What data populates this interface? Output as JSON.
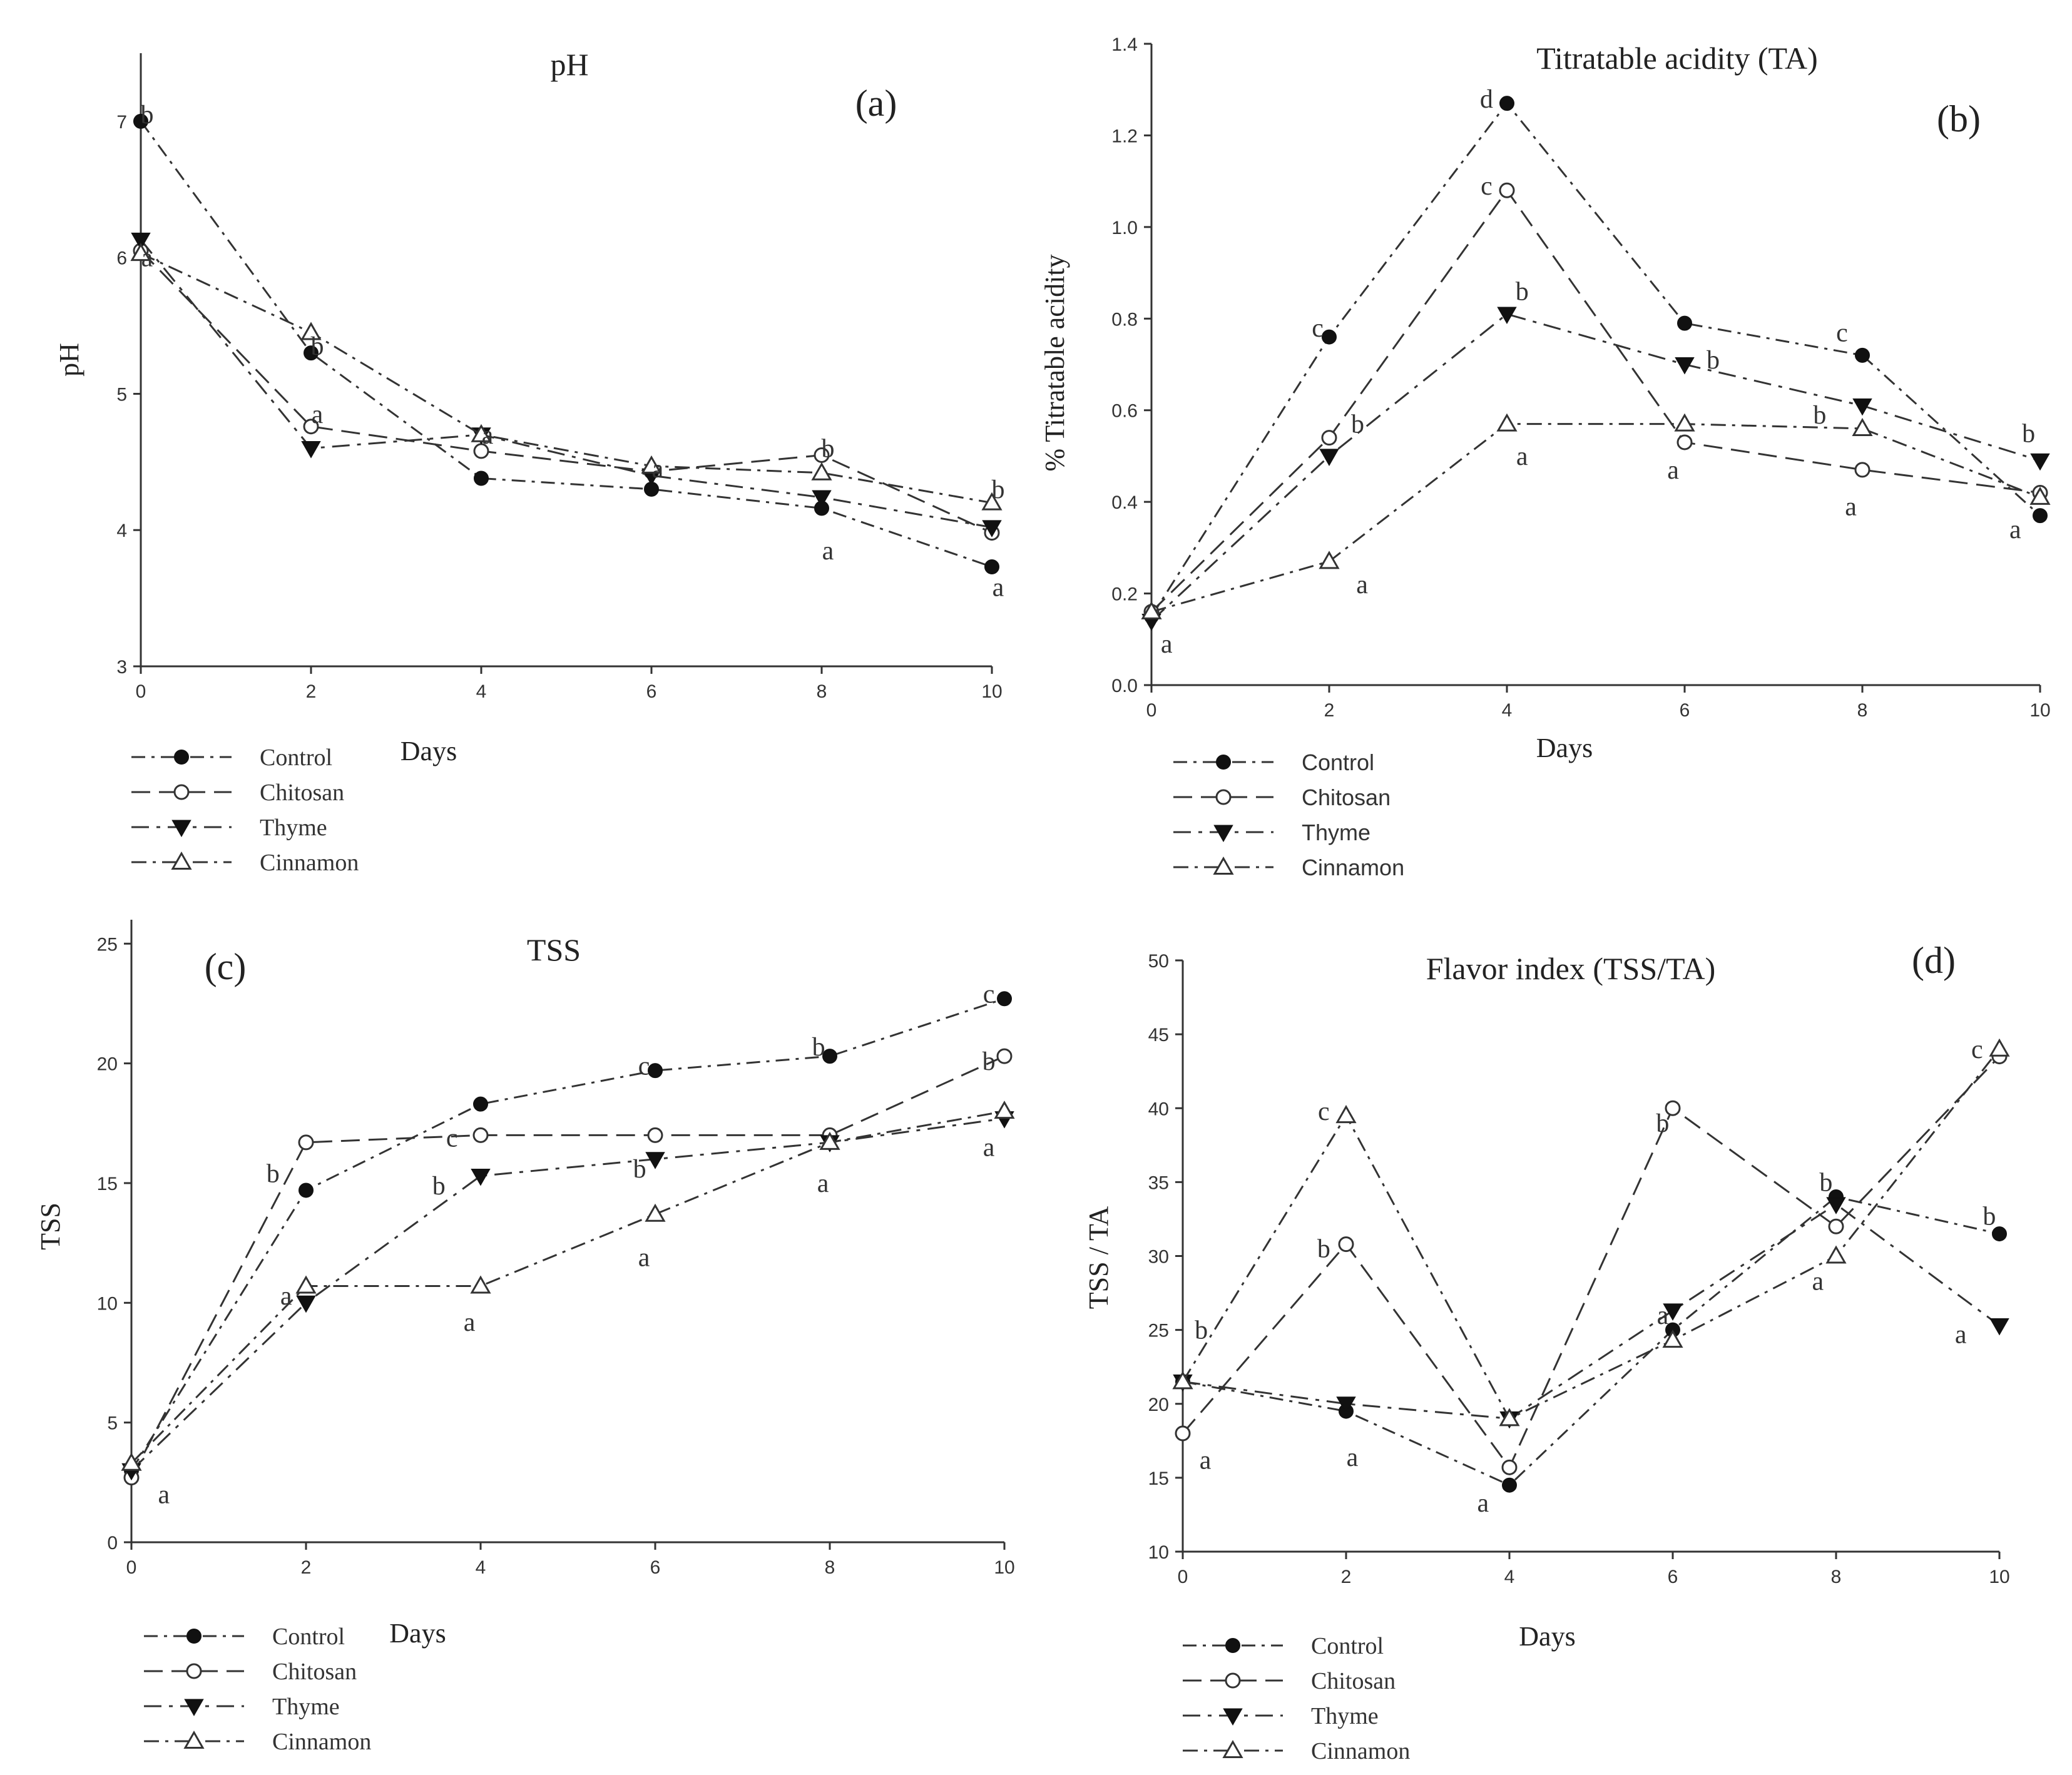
{
  "chart_data": [
    {
      "type": "line",
      "panel_label": "(a)",
      "title": "pH",
      "xlabel": "Days",
      "ylabel": "pH",
      "x": [
        0,
        2,
        4,
        6,
        8,
        10
      ],
      "xlim": [
        0,
        10
      ],
      "ylim": [
        3,
        7.5
      ],
      "yticks": [
        3,
        4,
        5,
        6,
        7
      ],
      "legend": "bottom-left",
      "series": [
        {
          "name": "Control",
          "marker": "filled-circle",
          "values": [
            7.0,
            5.3,
            4.38,
            4.3,
            4.16,
            3.73
          ]
        },
        {
          "name": "Chitosan",
          "marker": "open-circle",
          "values": [
            6.05,
            4.76,
            4.58,
            4.43,
            4.55,
            3.98
          ]
        },
        {
          "name": "Thyme",
          "marker": "filled-triangle-down",
          "values": [
            6.13,
            4.6,
            4.7,
            4.4,
            4.24,
            4.02
          ]
        },
        {
          "name": "Cinnamon",
          "marker": "open-triangle-up",
          "values": [
            6.03,
            5.45,
            4.7,
            4.47,
            4.42,
            4.2
          ]
        }
      ],
      "annotations": [
        {
          "text": "b",
          "x": 0,
          "y": 7.05
        },
        {
          "text": "a",
          "x": 0,
          "y": 6.0
        },
        {
          "text": "b",
          "x": 2,
          "y": 5.35
        },
        {
          "text": "a",
          "x": 2,
          "y": 4.85
        },
        {
          "text": "a",
          "x": 4,
          "y": 4.7
        },
        {
          "text": "a",
          "x": 6,
          "y": 4.45
        },
        {
          "text": "b",
          "x": 8,
          "y": 4.6
        },
        {
          "text": "a",
          "x": 8,
          "y": 3.85
        },
        {
          "text": "b",
          "x": 10,
          "y": 4.3
        },
        {
          "text": "a",
          "x": 10,
          "y": 3.58
        }
      ]
    },
    {
      "type": "line",
      "panel_label": "(b)",
      "title": "Titratable acidity (TA)",
      "xlabel": "Days",
      "ylabel": "% Titratable acidity",
      "x": [
        0,
        2,
        4,
        6,
        8,
        10
      ],
      "xlim": [
        0,
        10
      ],
      "ylim": [
        0.0,
        1.4
      ],
      "yticks": [
        "0.0",
        "0.2",
        "0.4",
        "0.6",
        "0.8",
        "1.0",
        "1.2",
        "1.4"
      ],
      "legend": "bottom-left",
      "series": [
        {
          "name": "Control",
          "marker": "filled-circle",
          "values": [
            0.15,
            0.76,
            1.27,
            0.79,
            0.72,
            0.37
          ]
        },
        {
          "name": "Chitosan",
          "marker": "open-circle",
          "values": [
            0.16,
            0.54,
            1.08,
            0.53,
            0.47,
            0.42
          ]
        },
        {
          "name": "Thyme",
          "marker": "filled-triangle-down",
          "values": [
            0.14,
            0.5,
            0.81,
            0.7,
            0.61,
            0.49
          ]
        },
        {
          "name": "Cinnamon",
          "marker": "open-triangle-up",
          "values": [
            0.16,
            0.27,
            0.57,
            0.57,
            0.56,
            0.41
          ]
        }
      ],
      "annotations": [
        {
          "text": "a",
          "x": 0.1,
          "y": 0.09
        },
        {
          "text": "c",
          "x": 1.8,
          "y": 0.78
        },
        {
          "text": "b",
          "x": 2.25,
          "y": 0.57
        },
        {
          "text": "a",
          "x": 2.3,
          "y": 0.22
        },
        {
          "text": "d",
          "x": 3.7,
          "y": 1.28
        },
        {
          "text": "c",
          "x": 3.7,
          "y": 1.09
        },
        {
          "text": "b",
          "x": 4.1,
          "y": 0.86
        },
        {
          "text": "a",
          "x": 4.1,
          "y": 0.5
        },
        {
          "text": "b",
          "x": 6.25,
          "y": 0.71
        },
        {
          "text": "a",
          "x": 5.8,
          "y": 0.47
        },
        {
          "text": "c",
          "x": 7.7,
          "y": 0.77
        },
        {
          "text": "b",
          "x": 7.45,
          "y": 0.59
        },
        {
          "text": "a",
          "x": 7.8,
          "y": 0.39
        },
        {
          "text": "b",
          "x": 9.8,
          "y": 0.55
        },
        {
          "text": "a",
          "x": 9.65,
          "y": 0.34
        }
      ]
    },
    {
      "type": "line",
      "panel_label": "(c)",
      "title": "TSS",
      "xlabel": "Days",
      "ylabel": "TSS",
      "x": [
        0,
        2,
        4,
        6,
        8,
        10
      ],
      "xlim": [
        0,
        10
      ],
      "ylim": [
        0,
        26
      ],
      "yticks": [
        0,
        5,
        10,
        15,
        20,
        25
      ],
      "legend": "bottom-left",
      "series": [
        {
          "name": "Control",
          "marker": "filled-circle",
          "values": [
            3.0,
            14.7,
            18.3,
            19.7,
            20.3,
            22.7
          ]
        },
        {
          "name": "Chitosan",
          "marker": "open-circle",
          "values": [
            2.7,
            16.7,
            17.0,
            17.0,
            17.0,
            20.3
          ]
        },
        {
          "name": "Thyme",
          "marker": "filled-triangle-down",
          "values": [
            3.0,
            10.0,
            15.3,
            16.0,
            16.7,
            17.7
          ]
        },
        {
          "name": "Cinnamon",
          "marker": "open-triangle-up",
          "values": [
            3.3,
            10.7,
            10.7,
            13.7,
            16.7,
            18.0
          ]
        }
      ],
      "annotations": [
        {
          "text": "a",
          "x": 0.3,
          "y": 2.0
        },
        {
          "text": "b",
          "x": 1.55,
          "y": 15.4
        },
        {
          "text": "a",
          "x": 1.7,
          "y": 10.3
        },
        {
          "text": "c",
          "x": 3.6,
          "y": 16.9
        },
        {
          "text": "b",
          "x": 3.45,
          "y": 14.9
        },
        {
          "text": "a",
          "x": 3.8,
          "y": 9.2
        },
        {
          "text": "c",
          "x": 5.8,
          "y": 19.9
        },
        {
          "text": "b",
          "x": 5.75,
          "y": 15.6
        },
        {
          "text": "a",
          "x": 5.8,
          "y": 11.9
        },
        {
          "text": "b",
          "x": 7.8,
          "y": 20.7
        },
        {
          "text": "a",
          "x": 7.85,
          "y": 15.0
        },
        {
          "text": "c",
          "x": 9.75,
          "y": 22.9
        },
        {
          "text": "b",
          "x": 9.75,
          "y": 20.1
        },
        {
          "text": "a",
          "x": 9.75,
          "y": 16.5
        }
      ]
    },
    {
      "type": "line",
      "panel_label": "(d)",
      "title": "Flavor index (TSS/TA)",
      "xlabel": "Days",
      "ylabel": "TSS / TA",
      "x": [
        0,
        2,
        4,
        6,
        8,
        10
      ],
      "xlim": [
        0,
        10
      ],
      "ylim": [
        10,
        50
      ],
      "yticks": [
        10,
        15,
        20,
        25,
        30,
        35,
        40,
        45,
        50
      ],
      "legend": "bottom-left",
      "series": [
        {
          "name": "Control",
          "marker": "filled-circle",
          "values": [
            21.5,
            19.5,
            14.5,
            25.0,
            34.0,
            31.5
          ]
        },
        {
          "name": "Chitosan",
          "marker": "open-circle",
          "values": [
            18.0,
            30.8,
            15.7,
            40.0,
            32.0,
            43.5
          ]
        },
        {
          "name": "Thyme",
          "marker": "filled-triangle-down",
          "values": [
            21.5,
            20.0,
            19.0,
            26.3,
            33.5,
            25.3
          ]
        },
        {
          "name": "Cinnamon",
          "marker": "open-triangle-up",
          "values": [
            21.5,
            39.5,
            19.0,
            24.3,
            30.0,
            44.0
          ]
        }
      ],
      "annotations": [
        {
          "text": "b",
          "x": 0.15,
          "y": 25.0
        },
        {
          "text": "a",
          "x": 0.2,
          "y": 16.2
        },
        {
          "text": "c",
          "x": 1.65,
          "y": 39.8
        },
        {
          "text": "b",
          "x": 1.65,
          "y": 30.5
        },
        {
          "text": "a",
          "x": 2.0,
          "y": 16.4
        },
        {
          "text": "a",
          "x": 3.6,
          "y": 13.3
        },
        {
          "text": "b",
          "x": 5.8,
          "y": 39.0
        },
        {
          "text": "a",
          "x": 5.8,
          "y": 26.0
        },
        {
          "text": "b",
          "x": 7.8,
          "y": 35.0
        },
        {
          "text": "a",
          "x": 7.7,
          "y": 28.3
        },
        {
          "text": "b",
          "x": 9.8,
          "y": 32.7
        },
        {
          "text": "c",
          "x": 9.65,
          "y": 44.0
        },
        {
          "text": "a",
          "x": 9.45,
          "y": 24.7
        }
      ]
    }
  ]
}
